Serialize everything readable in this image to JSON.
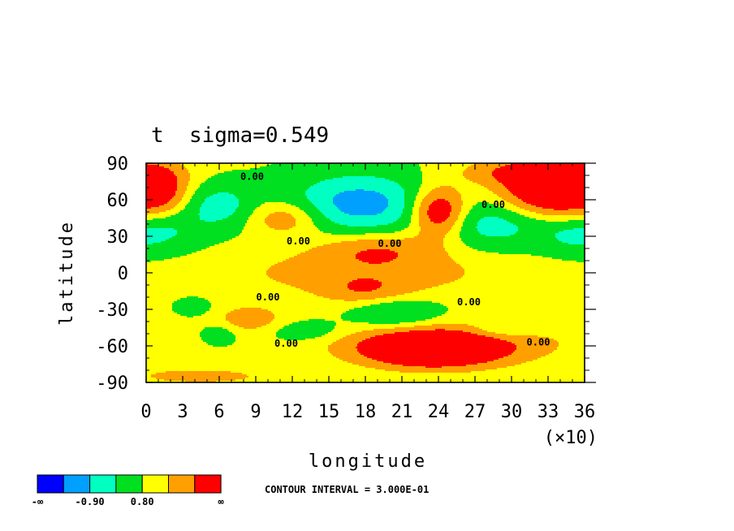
{
  "chart_data": {
    "type": "heatmap",
    "title": "t  sigma=0.549",
    "xlabel": "longitude",
    "ylabel": "latitude",
    "x_multiplier_label": "(×10)",
    "xlim": [
      0,
      360
    ],
    "ylim": [
      -90,
      90
    ],
    "x_ticks": [
      0,
      30,
      60,
      90,
      120,
      150,
      180,
      210,
      240,
      270,
      300,
      330,
      360
    ],
    "x_tick_labels": [
      "0",
      "3",
      "6",
      "9",
      "12",
      "15",
      "18",
      "21",
      "24",
      "27",
      "30",
      "33",
      "36"
    ],
    "y_ticks": [
      90,
      60,
      30,
      0,
      -30,
      -60,
      -90
    ],
    "y_tick_labels": [
      "90",
      "60",
      "30",
      "0",
      "-30",
      "-60",
      "-90"
    ],
    "contour_interval_text": "CONTOUR INTERVAL = 3.000E-01",
    "contour_labels": [
      {
        "text": "0.00",
        "lon": 87,
        "lat": 79
      },
      {
        "text": "0.00",
        "lon": 125,
        "lat": 26
      },
      {
        "text": "0.00",
        "lon": 200,
        "lat": 24
      },
      {
        "text": "0.00",
        "lon": 285,
        "lat": 56
      },
      {
        "text": "0.00",
        "lon": 100,
        "lat": -20
      },
      {
        "text": "0.00",
        "lon": 265,
        "lat": -24
      },
      {
        "text": "0.00",
        "lon": 115,
        "lat": -58
      },
      {
        "text": "0.00",
        "lon": 322,
        "lat": -57
      }
    ],
    "colorbar": {
      "colors": [
        "#0000ff",
        "#00a0ff",
        "#00ffc0",
        "#00e020",
        "#ffff00",
        "#ffa000",
        "#ff0000"
      ],
      "labels": [
        "-∞",
        "-0.90",
        "0.80",
        "∞"
      ]
    },
    "field_features": [
      {
        "lon": 14,
        "lat": 68,
        "amp": 0.8,
        "rl": 14,
        "rt": 14
      },
      {
        "lon": 60,
        "lat": 55,
        "amp": -0.95,
        "rl": 20,
        "rt": 13
      },
      {
        "lon": 175,
        "lat": 57,
        "amp": -1.55,
        "rl": 40,
        "rt": 17
      },
      {
        "lon": 240,
        "lat": 50,
        "amp": 2.1,
        "rl": 16,
        "rt": 14
      },
      {
        "lon": 335,
        "lat": 66,
        "amp": 2.2,
        "rl": 30,
        "rt": 14
      },
      {
        "lon": 320,
        "lat": 83,
        "amp": 1.2,
        "rl": 40,
        "rt": 8
      },
      {
        "lon": 115,
        "lat": 45,
        "amp": 1.0,
        "rl": 22,
        "rt": 10
      },
      {
        "lon": 190,
        "lat": 20,
        "amp": 0.9,
        "rl": 35,
        "rt": 10
      },
      {
        "lon": 180,
        "lat": 0,
        "amp": 0.75,
        "rl": 80,
        "rt": 14
      },
      {
        "lon": 20,
        "lat": 35,
        "amp": -0.6,
        "rl": 20,
        "rt": 12
      },
      {
        "lon": 285,
        "lat": 40,
        "amp": -0.95,
        "rl": 35,
        "rt": 14
      },
      {
        "lon": 350,
        "lat": 30,
        "amp": -0.6,
        "rl": 18,
        "rt": 10
      },
      {
        "lon": 205,
        "lat": -33,
        "amp": -0.8,
        "rl": 25,
        "rt": 9
      },
      {
        "lon": 130,
        "lat": -48,
        "amp": -0.55,
        "rl": 22,
        "rt": 6
      },
      {
        "lon": 60,
        "lat": -50,
        "amp": -0.5,
        "rl": 10,
        "rt": 6
      },
      {
        "lon": 40,
        "lat": -28,
        "amp": -0.45,
        "rl": 10,
        "rt": 5
      },
      {
        "lon": 290,
        "lat": -48,
        "amp": -0.55,
        "rl": 20,
        "rt": 5
      },
      {
        "lon": 85,
        "lat": -38,
        "amp": 0.8,
        "rl": 20,
        "rt": 8
      },
      {
        "lon": 235,
        "lat": -63,
        "amp": 2.3,
        "rl": 38,
        "rt": 10
      },
      {
        "lon": 250,
        "lat": -58,
        "amp": 0.9,
        "rl": 70,
        "rt": 12
      },
      {
        "lon": 180,
        "lat": -15,
        "amp": 0.7,
        "rl": 25,
        "rt": 8
      },
      {
        "lon": 45,
        "lat": -85,
        "amp": 0.6,
        "rl": 50,
        "rt": 6
      }
    ]
  }
}
